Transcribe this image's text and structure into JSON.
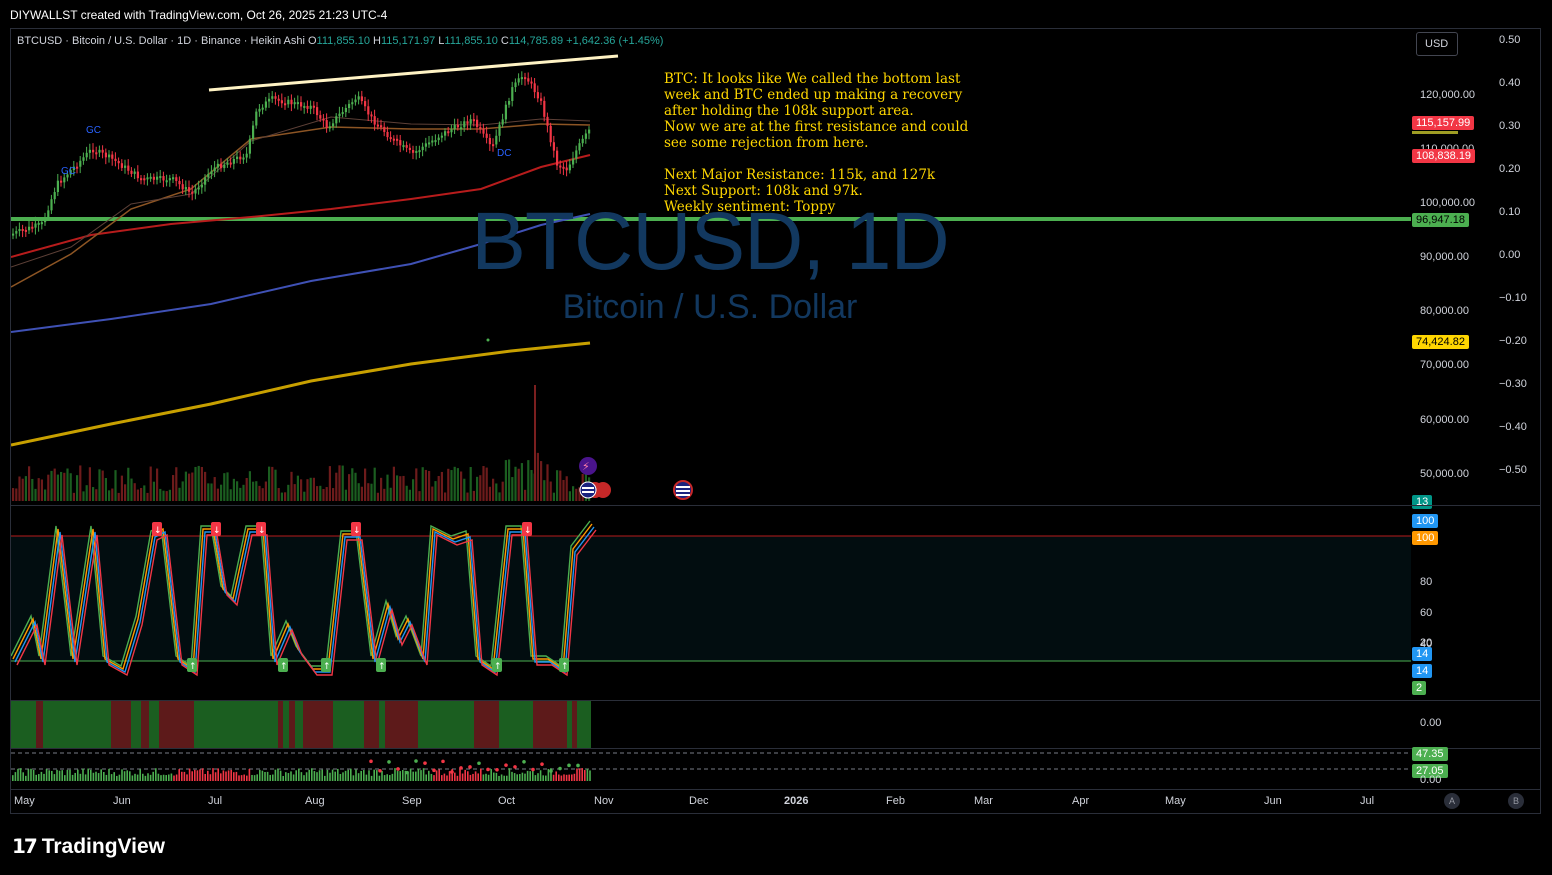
{
  "credit": "DIYWALLST created with TradingView.com, Oct 26, 2025 21:23 UTC-4",
  "symbol": {
    "name": "BTCUSD · Bitcoin / U.S. Dollar · 1D · Binance · Heikin Ashi",
    "open_label": "O",
    "open": "111,855.10",
    "high_label": "H",
    "high": "115,171.97",
    "low_label": "L",
    "low": "111,855.10",
    "close_label": "C",
    "close": "114,785.89",
    "change": "+1,642.36 (+1.45%)"
  },
  "currency": "USD",
  "watermark": {
    "title": "BTCUSD, 1D",
    "subtitle": "Bitcoin / U.S. Dollar"
  },
  "note": "BTC: It looks like We called the bottom last\nweek and BTC ended up making a recovery\nafter holding the 108k support area.\nNow we are at the first resistance and could\nsee some rejection from here.\n\nNext Major Resistance: 115k, and 127k\nNext Support: 108k and 97k.\nWeekly sentiment: Toppy",
  "price_axis": [
    "120,000.00",
    "110,000.00",
    "100,000.00",
    "90,000.00",
    "80,000.00",
    "70,000.00",
    "60,000.00",
    "50,000.00"
  ],
  "osc_axis": [
    "0.50",
    "0.40",
    "0.30",
    "0.20",
    "0.10",
    "0.00",
    "−0.10",
    "−0.20",
    "−0.30",
    "−0.40",
    "−0.50"
  ],
  "price_labels": [
    {
      "text": "115,157.99",
      "color": "#f23645"
    },
    {
      "text": "108,838.19",
      "color": "#f23645"
    },
    {
      "text": "96,947.18",
      "color": "#4caf50"
    },
    {
      "text": "74,424.82",
      "color": "#ffd600"
    },
    {
      "text": "13",
      "color": "#009688"
    }
  ],
  "stoch": {
    "axis": [
      "80",
      "60",
      "40",
      "20"
    ],
    "labels": [
      {
        "text": "100",
        "color": "#2196f3"
      },
      {
        "text": "100",
        "color": "#ff9800"
      },
      {
        "text": "14",
        "color": "#2196f3"
      },
      {
        "text": "14",
        "color": "#2196f3"
      },
      {
        "text": "2",
        "color": "#4caf50"
      }
    ]
  },
  "trend_pane": {
    "axis": "0.00"
  },
  "bottom_pane": {
    "labels": [
      {
        "text": "47.35",
        "color": "#4caf50"
      },
      {
        "text": "27.05",
        "color": "#4caf50"
      }
    ],
    "axis": "0.00"
  },
  "signals": [
    "GC",
    "GC",
    "DC"
  ],
  "time_axis": [
    "May",
    "Jun",
    "Jul",
    "Aug",
    "Sep",
    "Oct",
    "Nov",
    "Dec",
    "2026",
    "Feb",
    "Mar",
    "Apr",
    "May",
    "Jun",
    "Jul"
  ],
  "corner_buttons": [
    "A",
    "B"
  ],
  "footer": "TradingView",
  "colors": {
    "bull": "#4caf50",
    "bear": "#f23645",
    "support_line": "#4caf50",
    "resistance_line": "#fff3c4",
    "ma200": "#ffb300",
    "ma_blue": "#3f51b5",
    "ma_red": "#b71c1c"
  }
}
